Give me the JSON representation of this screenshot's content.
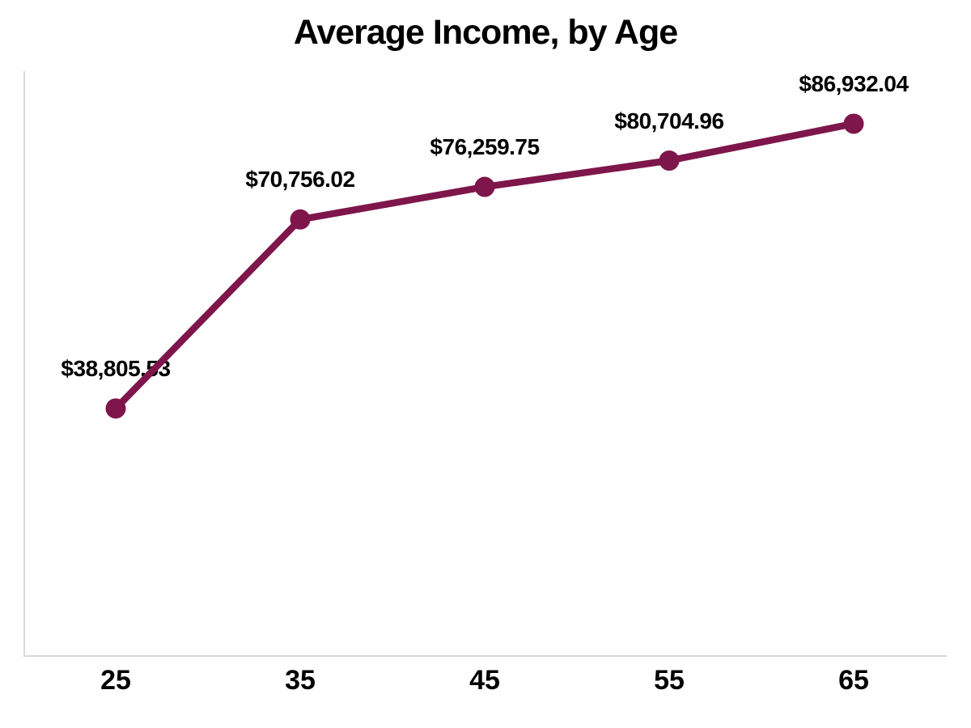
{
  "chart_data": {
    "type": "line",
    "title": "Average Income, by Age",
    "xlabel": "",
    "ylabel": "",
    "categories": [
      25,
      35,
      45,
      55,
      65
    ],
    "x_tick_labels": [
      "25",
      "35",
      "45",
      "55",
      "65"
    ],
    "values": [
      38805.53,
      70756.02,
      76259.75,
      80704.96,
      86932.04
    ],
    "point_labels": [
      "$38,805.53",
      "$70,756.02",
      "$76,259.75",
      "$80,704.96",
      "$86,932.04"
    ],
    "ylim": [
      0,
      95800
    ],
    "grid": false,
    "legend": "none",
    "y_axis_tick_labels_visible": false,
    "colors": {
      "line": "#7E164B",
      "marker": "#7E164B",
      "axis_line": "#D9D9D9",
      "text": "#000000",
      "background": "#FFFFFF"
    }
  }
}
